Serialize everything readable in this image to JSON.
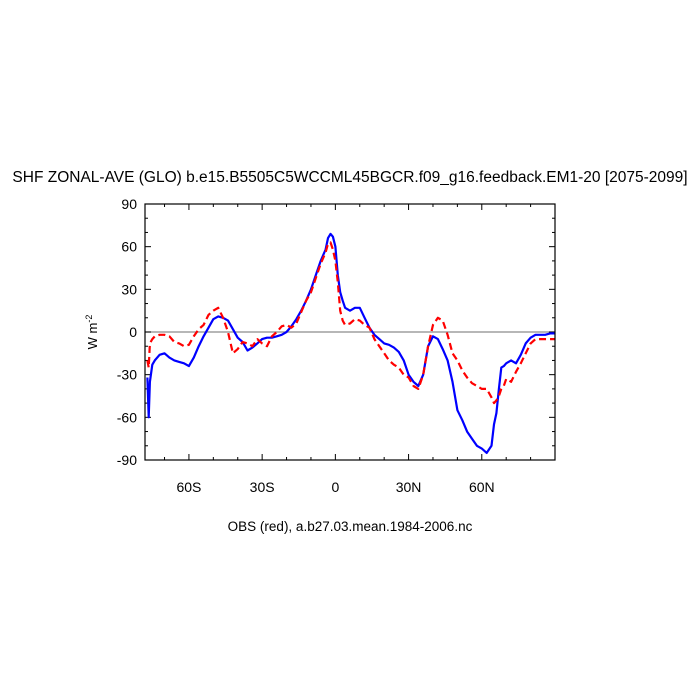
{
  "chart_data": {
    "type": "line",
    "title": "SHF ZONAL-AVE (GLO) b.e15.B5505C5WCCML45BGCR.f09_g16.feedback.EM1-20 [2075-2099]",
    "caption": "OBS (red), a.b27.03.mean.1984-2006.nc",
    "ylabel": "W m",
    "ylabel_sup": "-2",
    "xlim": [
      -78,
      90
    ],
    "ylim": [
      -90,
      90
    ],
    "xticks": [
      -60,
      -30,
      0,
      30,
      60
    ],
    "xtick_labels": [
      "60S",
      "30S",
      "0",
      "30N",
      "60N"
    ],
    "yticks": [
      -90,
      -60,
      -30,
      0,
      30,
      60,
      90
    ],
    "ytick_labels": [
      "-90",
      "-60",
      "-30",
      "0",
      "30",
      "60",
      "90"
    ],
    "zero_line": true,
    "grid": false,
    "series": [
      {
        "color": "#0000ff",
        "style": "solid",
        "x": [
          -77,
          -76.5,
          -76,
          -75,
          -74,
          -72,
          -70,
          -68,
          -66,
          -64,
          -62,
          -60,
          -58,
          -56,
          -54,
          -52,
          -50,
          -48,
          -46,
          -44,
          -42,
          -40,
          -38,
          -36,
          -34,
          -32,
          -30,
          -28,
          -26,
          -24,
          -22,
          -20,
          -18,
          -16,
          -14,
          -12,
          -10,
          -8,
          -6,
          -4,
          -3,
          -2,
          -1,
          0,
          1,
          2,
          3,
          4,
          6,
          8,
          10,
          12,
          14,
          16,
          18,
          20,
          22,
          24,
          26,
          28,
          30,
          32,
          34,
          36,
          38,
          40,
          42,
          44,
          46,
          48,
          50,
          52,
          54,
          56,
          58,
          60,
          62,
          64,
          65,
          66,
          67,
          68,
          69,
          70,
          72,
          74,
          76,
          78,
          80,
          82,
          84,
          86,
          88,
          90
        ],
        "y": [
          -32,
          -60,
          -35,
          -23,
          -20,
          -16,
          -15,
          -18,
          -20,
          -21,
          -22,
          -24,
          -18,
          -10,
          -3,
          3,
          9,
          11,
          10,
          8,
          2,
          -4,
          -7,
          -13,
          -11,
          -8,
          -5,
          -4,
          -4,
          -3,
          -2,
          0,
          4,
          9,
          15,
          22,
          30,
          40,
          50,
          58,
          66,
          69,
          67,
          60,
          40,
          28,
          22,
          17,
          15,
          17,
          17,
          10,
          3,
          -2,
          -5,
          -8,
          -9,
          -11,
          -14,
          -20,
          -30,
          -35,
          -38,
          -30,
          -10,
          -3,
          -5,
          -12,
          -20,
          -35,
          -55,
          -62,
          -70,
          -75,
          -80,
          -82,
          -85,
          -80,
          -65,
          -57,
          -40,
          -25,
          -24,
          -22,
          -20,
          -22,
          -16,
          -8,
          -4,
          -2,
          -2,
          -2,
          -1,
          -1
        ],
        "note_sources": "blue model series"
      },
      {
        "color": "#ff0000",
        "style": "dashed",
        "x": [
          -77,
          -76.5,
          -76,
          -75,
          -74,
          -72,
          -70,
          -68,
          -66,
          -64,
          -62,
          -60,
          -58,
          -56,
          -54,
          -52,
          -50,
          -48,
          -46,
          -44,
          -42,
          -40,
          -38,
          -36,
          -34,
          -32,
          -30,
          -28,
          -26,
          -24,
          -22,
          -20,
          -18,
          -16,
          -14,
          -12,
          -10,
          -8,
          -6,
          -4,
          -3,
          -2,
          -1,
          0,
          1,
          2,
          3,
          4,
          6,
          8,
          10,
          12,
          14,
          16,
          18,
          20,
          22,
          24,
          26,
          28,
          30,
          32,
          34,
          36,
          38,
          40,
          42,
          44,
          46,
          48,
          50,
          52,
          54,
          56,
          58,
          60,
          62,
          64,
          65,
          66,
          67,
          68,
          69,
          70,
          72,
          74,
          76,
          78,
          80,
          82,
          84,
          86,
          88,
          90
        ],
        "y": [
          -20,
          -25,
          -8,
          -5,
          -3,
          -2,
          -2,
          -3,
          -7,
          -8,
          -10,
          -9,
          -3,
          2,
          5,
          12,
          15,
          17,
          10,
          0,
          -15,
          -12,
          -7,
          -8,
          -10,
          -5,
          -8,
          -10,
          -3,
          0,
          4,
          5,
          3,
          6,
          14,
          22,
          28,
          38,
          48,
          56,
          62,
          63,
          58,
          50,
          35,
          15,
          8,
          5,
          6,
          9,
          8,
          5,
          3,
          -5,
          -10,
          -15,
          -20,
          -23,
          -25,
          -30,
          -32,
          -38,
          -40,
          -30,
          -10,
          5,
          10,
          8,
          -2,
          -15,
          -20,
          -27,
          -32,
          -36,
          -38,
          -40,
          -40,
          -46,
          -50,
          -48,
          -45,
          -40,
          -38,
          -33,
          -35,
          -28,
          -22,
          -15,
          -8,
          -5,
          -5,
          -5,
          -5,
          -5
        ],
        "note_sources": "red OBS series"
      }
    ]
  }
}
